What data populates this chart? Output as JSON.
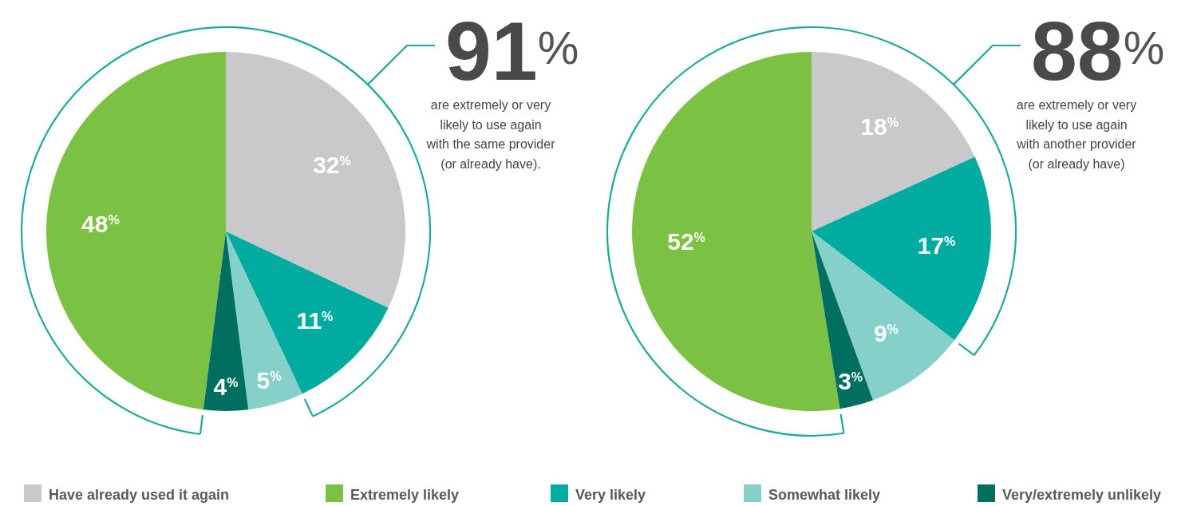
{
  "chart_data": [
    {
      "type": "pie",
      "categories": [
        "Have already used it again",
        "Extremely likely",
        "Very likely",
        "Somewhat likely",
        "Very/extremely unlikely"
      ],
      "values": [
        32,
        48,
        11,
        5,
        4
      ],
      "value_labels": [
        "32$^{%}$",
        "48$^{%}$",
        "11$^{%}$",
        "5$^{%}$",
        "4$^{%}$"
      ],
      "colors": [
        "#c9c8cb",
        "#7bc143",
        "#00ab9f",
        "#86d0ca",
        "#006f60"
      ],
      "annotations": [
        "91$^{%}$",
        "are extremely or very likely to use again with the same provider (or already have)."
      ],
      "legend": "bottom"
    },
    {
      "type": "pie",
      "categories": [
        null,
        null,
        null,
        null,
        null
      ],
      "values": [
        18,
        52,
        17,
        9,
        3
      ],
      "value_labels": [
        "18$^{%}$",
        "52$^{%}$",
        "17$^{%}$",
        "9$^{%}$",
        "3$^{%}$"
      ],
      "colors": [
        "#c9c8cb",
        "#7bc143",
        "#00ab9f",
        "#86d0ca",
        "#006f60"
      ],
      "annotations": [
        "88$^{%}$",
        "are extremely or very likely to use again with another provider (or already have)"
      ]
    }
  ]
}
